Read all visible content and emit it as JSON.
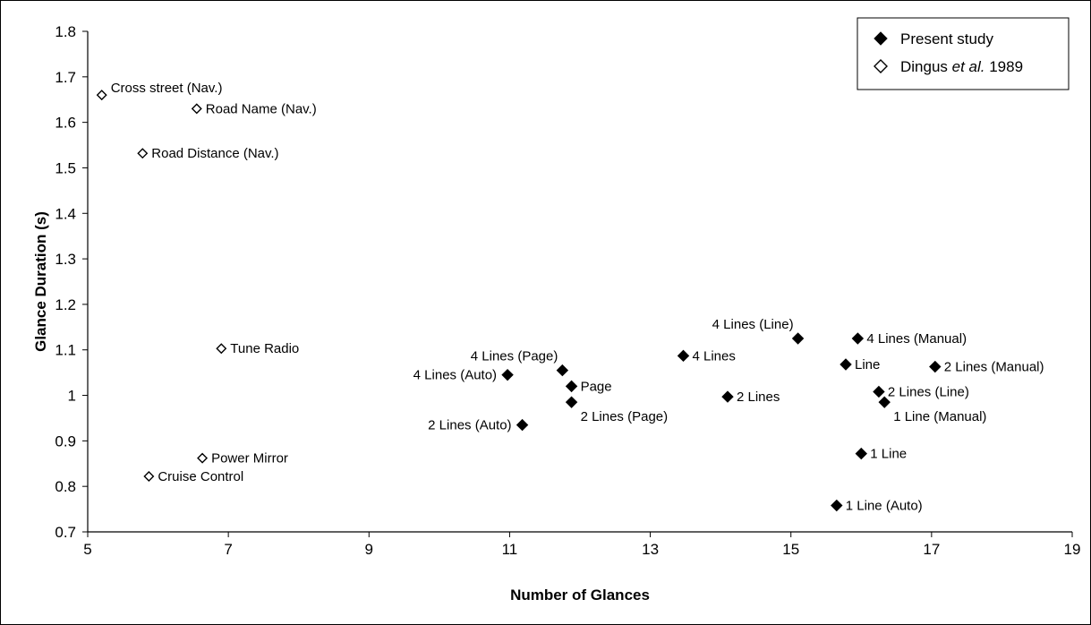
{
  "chart_data": {
    "type": "scatter",
    "xlabel": "Number of Glances",
    "ylabel": "Glance Duration (s)",
    "xlim": [
      5,
      19
    ],
    "ylim": [
      0.7,
      1.8
    ],
    "x_ticks": [
      "5",
      "7",
      "9",
      "11",
      "13",
      "15",
      "17",
      "19"
    ],
    "y_ticks": [
      "0.7",
      "0.8",
      "0.9",
      "1",
      "1.1",
      "1.2",
      "1.3",
      "1.4",
      "1.5",
      "1.6",
      "1.7",
      "1.8"
    ],
    "grid": false,
    "legend_position": "top-right",
    "series": [
      {
        "name": "Present study",
        "legend_label": {
          "text": "Present study"
        },
        "marker": "filled-diamond",
        "color": "#000000",
        "points": [
          {
            "label": "4 Lines (Auto)",
            "x": 10.97,
            "y": 1.045,
            "anchor": "left"
          },
          {
            "label": "4 Lines (Page)",
            "x": 11.75,
            "y": 1.055,
            "anchor": "above-left"
          },
          {
            "label": "Page",
            "x": 11.88,
            "y": 1.02,
            "anchor": "right"
          },
          {
            "label": "2 Lines (Page)",
            "x": 11.88,
            "y": 0.985,
            "anchor": "below-right"
          },
          {
            "label": "2 Lines (Auto)",
            "x": 11.18,
            "y": 0.935,
            "anchor": "left"
          },
          {
            "label": "4 Lines",
            "x": 13.47,
            "y": 1.087,
            "anchor": "right"
          },
          {
            "label": "2 Lines",
            "x": 14.1,
            "y": 0.997,
            "anchor": "right"
          },
          {
            "label": "4 Lines (Line)",
            "x": 15.1,
            "y": 1.125,
            "anchor": "above-left"
          },
          {
            "label": "4 Lines (Manual)",
            "x": 15.95,
            "y": 1.125,
            "anchor": "right"
          },
          {
            "label": "Line",
            "x": 15.78,
            "y": 1.068,
            "anchor": "right"
          },
          {
            "label": "2 Lines (Manual)",
            "x": 17.05,
            "y": 1.063,
            "anchor": "right"
          },
          {
            "label": "2 Lines (Line)",
            "x": 16.25,
            "y": 1.008,
            "anchor": "right"
          },
          {
            "label": "1 Line (Manual)",
            "x": 16.33,
            "y": 0.985,
            "anchor": "below-right"
          },
          {
            "label": "1 Line",
            "x": 16.0,
            "y": 0.872,
            "anchor": "right"
          },
          {
            "label": "1 Line (Auto)",
            "x": 15.65,
            "y": 0.758,
            "anchor": "right"
          }
        ]
      },
      {
        "name": "Dingus et al. 1989",
        "legend_label": {
          "pre": "Dingus ",
          "italic": "et al.",
          "post": " 1989"
        },
        "marker": "hollow-diamond",
        "color": "#000000",
        "points": [
          {
            "label": "Cross street (Nav.)",
            "x": 5.2,
            "y": 1.66,
            "anchor": "above-right"
          },
          {
            "label": "Road Name (Nav.)",
            "x": 6.55,
            "y": 1.63,
            "anchor": "right"
          },
          {
            "label": "Road Distance (Nav.)",
            "x": 5.78,
            "y": 1.532,
            "anchor": "right"
          },
          {
            "label": "Tune Radio",
            "x": 6.9,
            "y": 1.103,
            "anchor": "right"
          },
          {
            "label": "Power Mirror",
            "x": 6.63,
            "y": 0.862,
            "anchor": "right"
          },
          {
            "label": "Cruise Control",
            "x": 5.87,
            "y": 0.822,
            "anchor": "right"
          }
        ]
      }
    ]
  }
}
